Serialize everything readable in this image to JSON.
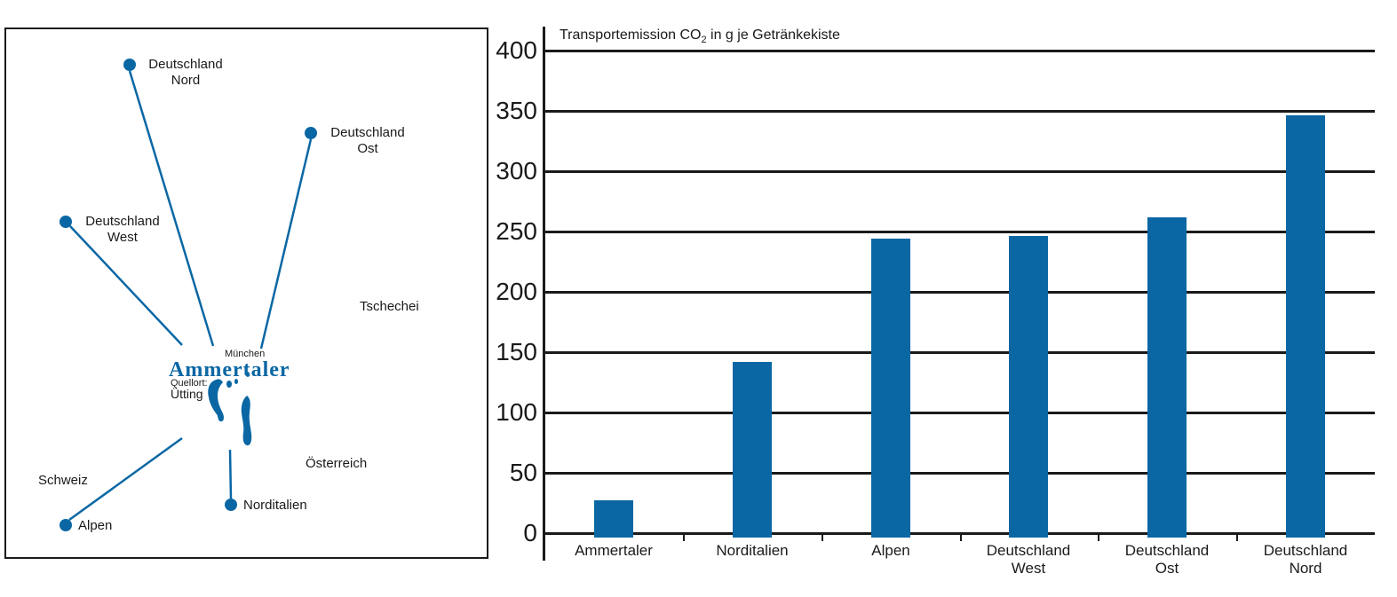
{
  "map_panel": {
    "accent_color": "#0a67a4",
    "nodes": [
      {
        "id": "deutschland-nord",
        "lines": [
          "Deutschland",
          "Nord"
        ]
      },
      {
        "id": "deutschland-ost",
        "lines": [
          "Deutschland",
          "Ost"
        ]
      },
      {
        "id": "deutschland-west",
        "lines": [
          "Deutschland",
          "West"
        ]
      },
      {
        "id": "alpen",
        "lines": [
          "Alpen"
        ]
      },
      {
        "id": "norditalien",
        "lines": [
          "Norditalien"
        ]
      }
    ],
    "regions": [
      {
        "id": "tschechei",
        "label": "Tschechei"
      },
      {
        "id": "oesterreich",
        "label": "Österreich"
      },
      {
        "id": "schweiz",
        "label": "Schweiz"
      }
    ],
    "center": {
      "city": "München",
      "brand": "Ammertaler",
      "source_label": "Quellort:",
      "source_place": "Ütting"
    }
  },
  "chart_data": {
    "type": "bar",
    "title_prefix": "Transportemission CO",
    "title_sub": "2",
    "title_suffix": " in g je Getränkekiste",
    "categories": [
      "Ammertaler",
      "Norditalien",
      "Alpen",
      "Deutschland West",
      "Deutschland Ost",
      "Deutschland Nord"
    ],
    "category_lines": [
      [
        "Ammertaler"
      ],
      [
        "Norditalien"
      ],
      [
        "Alpen"
      ],
      [
        "Deutschland",
        "West"
      ],
      [
        "Deutschland",
        "Ost"
      ],
      [
        "Deutschland",
        "Nord"
      ]
    ],
    "values": [
      27,
      142,
      244,
      246,
      262,
      346
    ],
    "ylabel": "",
    "xlabel": "",
    "ylim": [
      0,
      400
    ],
    "ytick_step": 50,
    "yticks": [
      400,
      350,
      300,
      250,
      200,
      150,
      100,
      50,
      0
    ],
    "bar_color": "#0a67a4",
    "grid": true,
    "legend": "none"
  }
}
